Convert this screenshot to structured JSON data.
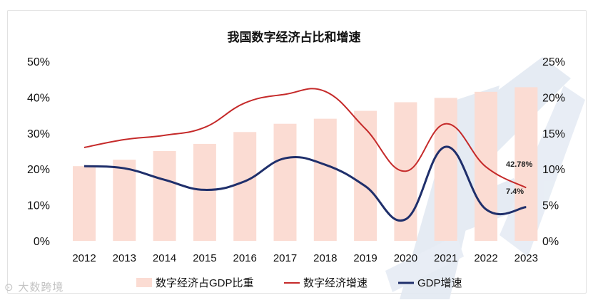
{
  "chart_data": {
    "type": "bar-line-combo",
    "title": "我国数字经济占比和增速",
    "categories": [
      "2012",
      "2013",
      "2014",
      "2015",
      "2016",
      "2017",
      "2018",
      "2019",
      "2020",
      "2021",
      "2022",
      "2023"
    ],
    "y_left": {
      "range": [
        0,
        50
      ],
      "ticks": [
        "0%",
        "10%",
        "20%",
        "30%",
        "40%",
        "50%"
      ]
    },
    "y_right": {
      "range": [
        0,
        25
      ],
      "ticks": [
        "0%",
        "5%",
        "10%",
        "15%",
        "20%",
        "25%"
      ]
    },
    "grid": false,
    "legend_position": "bottom",
    "series": [
      {
        "name": "数字经济占GDP比重",
        "kind": "bar",
        "axis": "left",
        "color": "#fbdcd3",
        "values": [
          20.8,
          22.6,
          25.0,
          27.0,
          30.3,
          32.6,
          34.0,
          36.2,
          38.6,
          39.8,
          41.5,
          42.78
        ]
      },
      {
        "name": "数字经济增速",
        "kind": "line",
        "axis": "right",
        "color": "#c52a2a",
        "values": [
          13.0,
          14.1,
          14.7,
          15.8,
          19.2,
          20.4,
          20.8,
          15.6,
          9.7,
          16.3,
          10.3,
          7.4
        ]
      },
      {
        "name": "GDP增速",
        "kind": "line",
        "axis": "right",
        "color": "#1f2f6b",
        "values": [
          10.4,
          10.1,
          8.5,
          7.1,
          8.3,
          11.5,
          10.6,
          7.6,
          3.0,
          13.1,
          4.4,
          4.7
        ]
      }
    ],
    "annotations": [
      "42.78%",
      "7.4%"
    ]
  },
  "watermark": {
    "logo_text": "大数跨境",
    "color": "#dfe6f1"
  }
}
